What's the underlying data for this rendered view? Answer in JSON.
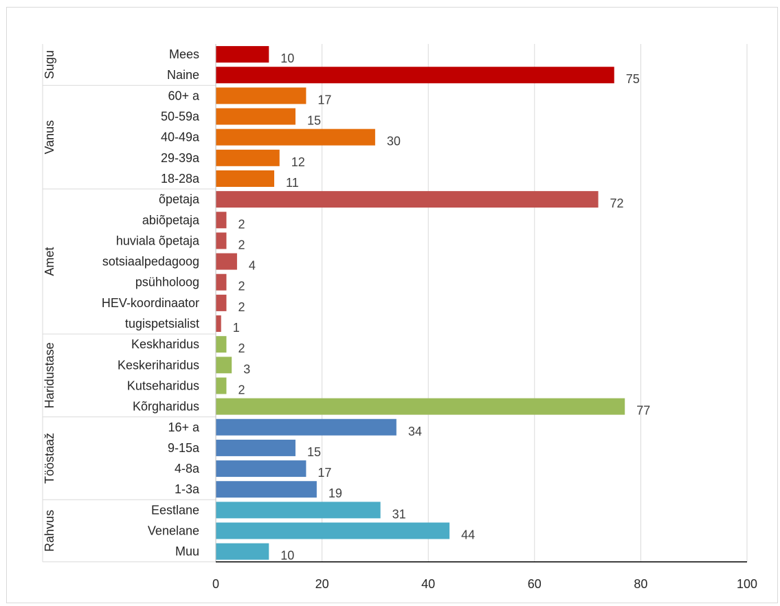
{
  "chart_data": {
    "type": "bar",
    "orientation": "horizontal",
    "xlim": [
      0,
      100
    ],
    "x_ticks": [
      "0",
      "20",
      "40",
      "60",
      "80",
      "100"
    ],
    "grid": true,
    "legend": "none",
    "groups": [
      {
        "name": "Sugu",
        "color": "#c00000",
        "items": [
          {
            "label": "Mees",
            "value": 10
          },
          {
            "label": "Naine",
            "value": 75
          }
        ]
      },
      {
        "name": "Vanus",
        "color": "#e46c0a",
        "items": [
          {
            "label": "60+ a",
            "value": 17
          },
          {
            "label": "50-59a",
            "value": 15
          },
          {
            "label": "40-49a",
            "value": 30
          },
          {
            "label": "29-39a",
            "value": 12
          },
          {
            "label": "18-28a",
            "value": 11
          }
        ]
      },
      {
        "name": "Amet",
        "color": "#c0504d",
        "items": [
          {
            "label": "õpetaja",
            "value": 72
          },
          {
            "label": "abiõpetaja",
            "value": 2
          },
          {
            "label": "huviala õpetaja",
            "value": 2
          },
          {
            "label": "sotsiaalpedagoog",
            "value": 4
          },
          {
            "label": "psühholoog",
            "value": 2
          },
          {
            "label": "HEV-koordinaator",
            "value": 2
          },
          {
            "label": "tugispetsialist",
            "value": 1
          }
        ]
      },
      {
        "name": "Haridustase",
        "color": "#9bbb59",
        "items": [
          {
            "label": "Keskharidus",
            "value": 2
          },
          {
            "label": "Keskeriharidus",
            "value": 3
          },
          {
            "label": "Kutseharidus",
            "value": 2
          },
          {
            "label": "Kõrgharidus",
            "value": 77
          }
        ]
      },
      {
        "name": "Tööstaaž",
        "color": "#4f81bd",
        "items": [
          {
            "label": "16+ a",
            "value": 34
          },
          {
            "label": "9-15a",
            "value": 15
          },
          {
            "label": "4-8a",
            "value": 17
          },
          {
            "label": "1-3a",
            "value": 19
          }
        ]
      },
      {
        "name": "Rahvus",
        "color": "#4bacc6",
        "items": [
          {
            "label": "Eestlane",
            "value": 31
          },
          {
            "label": "Venelane",
            "value": 44
          },
          {
            "label": "Muu",
            "value": 10
          }
        ]
      }
    ]
  }
}
